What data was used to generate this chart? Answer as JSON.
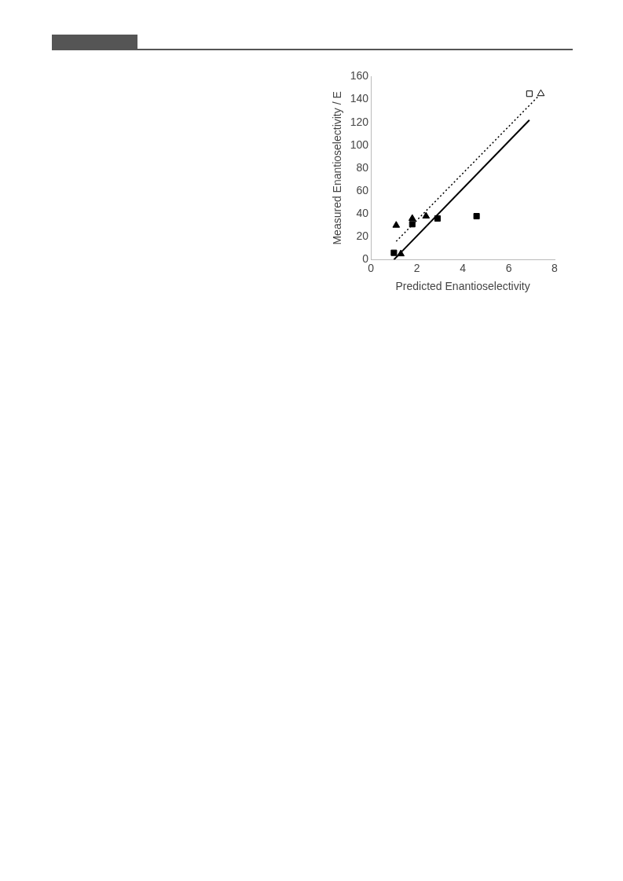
{
  "chart_data": {
    "type": "scatter",
    "xlabel": "Predicted Enantioselectivity",
    "ylabel": "Measured Enantioselectivity / E",
    "xlim": [
      0,
      8
    ],
    "xticks": [
      0,
      2,
      4,
      6,
      8
    ],
    "ylim": [
      0,
      160
    ],
    "yticks": [
      0,
      20,
      40,
      60,
      80,
      100,
      120,
      140,
      160
    ],
    "grid": false,
    "legend": false,
    "series": [
      {
        "marker": "square",
        "color": "#000000",
        "x": [
          1.0,
          1.8,
          2.9,
          4.6
        ],
        "values": [
          6,
          31,
          36,
          38
        ]
      },
      {
        "marker": "triangle",
        "color": "#000000",
        "x": [
          1.1,
          1.3,
          1.8,
          2.4
        ],
        "values": [
          30,
          5,
          36,
          38
        ]
      },
      {
        "marker": "square",
        "color": "#ffffff",
        "x": [
          6.9
        ],
        "values": [
          145
        ]
      },
      {
        "marker": "triangle",
        "color": "#ffffff",
        "x": [
          7.4
        ],
        "values": [
          145
        ]
      },
      {
        "type": "line",
        "line_style": "solid",
        "marker": "none",
        "color": "#000000",
        "x": [
          1.0,
          6.9
        ],
        "values": [
          0,
          122
        ]
      },
      {
        "type": "line",
        "line_style": "dotted",
        "marker": "none",
        "color": "#000000",
        "x": [
          1.1,
          7.3
        ],
        "values": [
          16,
          143
        ]
      }
    ]
  }
}
